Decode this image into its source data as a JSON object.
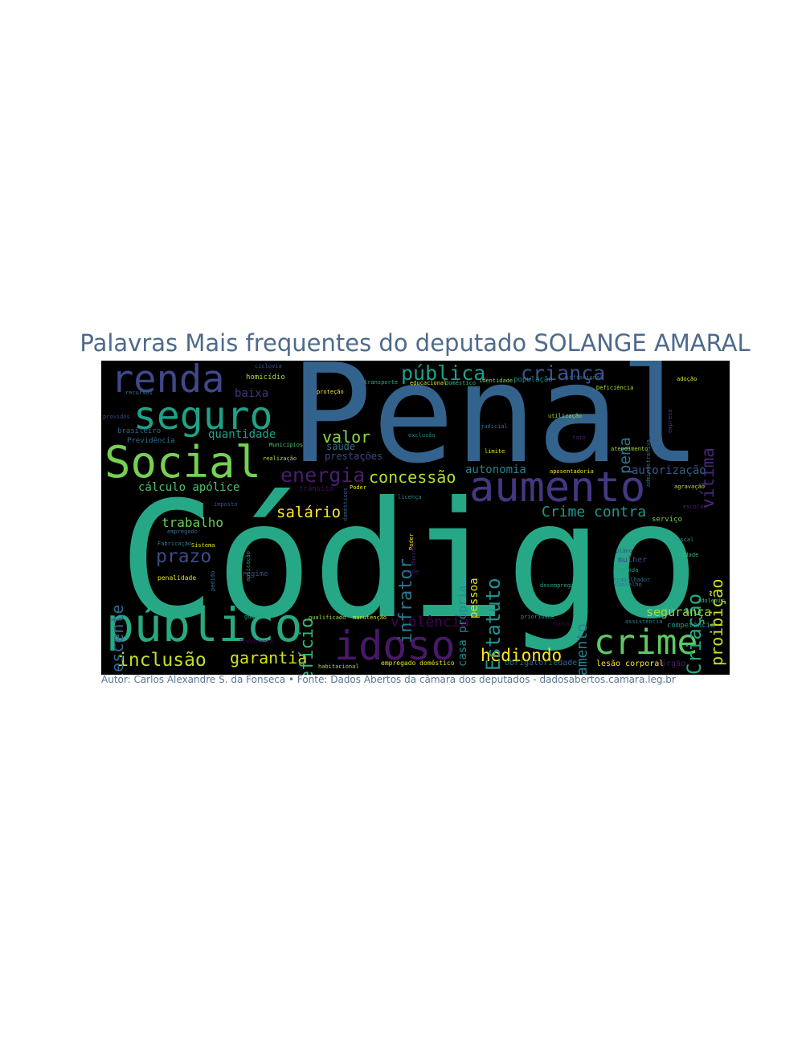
{
  "chart_data": {
    "type": "wordcloud",
    "title": "Palavras Mais frequentes do deputado SOLANGE AMARAL",
    "caption": "Autor: Carlos Alexandre S. da Fonseca • Fonte: Dados Abertos da câmara dos deputados - dadosabertos.camara.leg.br",
    "background": "#000000",
    "words": [
      {
        "text": "Código",
        "color": "#26a887",
        "vertical": false
      },
      {
        "text": "Penal",
        "color": "#33638d",
        "vertical": false
      },
      {
        "text": "público",
        "color": "#27a982",
        "vertical": false
      },
      {
        "text": "aumento",
        "color": "#453781",
        "vertical": false
      },
      {
        "text": "Social",
        "color": "#75d054",
        "vertical": false
      },
      {
        "text": "seguro",
        "color": "#1fa188",
        "vertical": false
      },
      {
        "text": "renda",
        "color": "#3f4889",
        "vertical": false
      },
      {
        "text": "idoso",
        "color": "#48186a",
        "vertical": false
      },
      {
        "text": "crime",
        "color": "#5ec962",
        "vertical": false
      },
      {
        "text": "inclusão",
        "color": "#c2df23",
        "vertical": false
      },
      {
        "text": "garantia",
        "color": "#d2e21b",
        "vertical": false
      },
      {
        "text": "hediondo",
        "color": "#fde725",
        "vertical": false
      },
      {
        "text": "violência",
        "color": "#440154",
        "vertical": false
      },
      {
        "text": "Estatuto",
        "color": "#21918c",
        "vertical": true
      },
      {
        "text": "infrator",
        "color": "#2a788e",
        "vertical": true
      },
      {
        "text": "benefício",
        "color": "#35b779",
        "vertical": true
      },
      {
        "text": "adolescente",
        "color": "#31688e",
        "vertical": true
      },
      {
        "text": "financiamento",
        "color": "#25858e",
        "vertical": true
      },
      {
        "text": "Criação",
        "color": "#22a884",
        "vertical": true
      },
      {
        "text": "proibição",
        "color": "#c8e020",
        "vertical": true
      },
      {
        "text": "vítima",
        "color": "#482878",
        "vertical": true
      },
      {
        "text": "pena",
        "color": "#2c728e",
        "vertical": true
      },
      {
        "text": "pública",
        "color": "#1f9e89",
        "vertical": false
      },
      {
        "text": "criança",
        "color": "#3b528b",
        "vertical": false
      },
      {
        "text": "energia",
        "color": "#481f70",
        "vertical": false
      },
      {
        "text": "concessão",
        "color": "#b5de2b",
        "vertical": false
      },
      {
        "text": "valor",
        "color": "#8fd744",
        "vertical": false
      },
      {
        "text": "salário",
        "color": "#fde725",
        "vertical": false
      },
      {
        "text": "prazo",
        "color": "#3e4a89",
        "vertical": false
      },
      {
        "text": "trabalho",
        "color": "#6ccd5a",
        "vertical": false
      },
      {
        "text": "Crime contra",
        "color": "#1f988b",
        "vertical": false
      },
      {
        "text": "segurança",
        "color": "#a0da39",
        "vertical": false
      },
      {
        "text": "autonomia",
        "color": "#26828e",
        "vertical": false
      },
      {
        "text": "autorização",
        "color": "#365c8d",
        "vertical": false
      },
      {
        "text": "cálculo apólice",
        "color": "#4ac16d",
        "vertical": false
      },
      {
        "text": "quantidade",
        "color": "#20a386",
        "vertical": false
      },
      {
        "text": "baixa",
        "color": "#46327e",
        "vertical": false
      },
      {
        "text": "saúde",
        "color": "#2d708e",
        "vertical": false
      },
      {
        "text": "prestações",
        "color": "#3f4788",
        "vertical": false
      },
      {
        "text": "casa própria",
        "color": "#23898e",
        "vertical": true
      },
      {
        "text": "pessoa",
        "color": "#dde318",
        "vertical": true
      },
      {
        "text": "homicídio",
        "color": "#a5db36",
        "vertical": false
      },
      {
        "text": "Previdência",
        "color": "#2e6f8e",
        "vertical": false
      },
      {
        "text": "brasileiro",
        "color": "#31688e",
        "vertical": false
      },
      {
        "text": "regime",
        "color": "#3e4c8a",
        "vertical": false
      },
      {
        "text": "penalidade",
        "color": "#d8e219",
        "vertical": false
      },
      {
        "text": "empregado doméstico",
        "color": "#e5e419",
        "vertical": false
      },
      {
        "text": "obrigatoriedade",
        "color": "#30698e",
        "vertical": false
      },
      {
        "text": "lesão corporal",
        "color": "#fde725",
        "vertical": false
      },
      {
        "text": "órgão",
        "color": "#481c6e",
        "vertical": false
      },
      {
        "text": "habitacional",
        "color": "#addc30",
        "vertical": false
      },
      {
        "text": "competência",
        "color": "#1e9b8a",
        "vertical": false
      },
      {
        "text": "assistência",
        "color": "#25848e",
        "vertical": false
      },
      {
        "text": "adolemir",
        "color": "#38b977",
        "vertical": false
      },
      {
        "text": "Conselho",
        "color": "#2a788e",
        "vertical": false
      },
      {
        "text": "mulher",
        "color": "#414487",
        "vertical": false
      },
      {
        "text": "serviço",
        "color": "#75d054",
        "vertical": false
      },
      {
        "text": "aposentadoria",
        "color": "#f1e51d",
        "vertical": false
      },
      {
        "text": "atendimento",
        "color": "#a2da37",
        "vertical": false
      },
      {
        "text": "utilização",
        "color": "#9bd93c",
        "vertical": false
      },
      {
        "text": "judicial",
        "color": "#2c718e",
        "vertical": false
      },
      {
        "text": "exclusão",
        "color": "#24878e",
        "vertical": false
      },
      {
        "text": "Municípios",
        "color": "#50c46a",
        "vertical": false
      },
      {
        "text": "realização",
        "color": "#a8db34",
        "vertical": false
      },
      {
        "text": "trânsito",
        "color": "#470e61",
        "vertical": false
      },
      {
        "text": "imposto",
        "color": "#3b528b",
        "vertical": false
      },
      {
        "text": "empregado",
        "color": "#2d708e",
        "vertical": false
      },
      {
        "text": "Fabricação",
        "color": "#25848e",
        "vertical": false
      },
      {
        "text": "Sistema",
        "color": "#e2e418",
        "vertical": false
      },
      {
        "text": "guarda",
        "color": "#1fa088",
        "vertical": false
      },
      {
        "text": "qualificado",
        "color": "#9dd93b",
        "vertical": false
      },
      {
        "text": "manutenção",
        "color": "#d5e21a",
        "vertical": false
      },
      {
        "text": "educacional",
        "color": "#e7e419",
        "vertical": false
      },
      {
        "text": "doméstico",
        "color": "#35b779",
        "vertical": false
      },
      {
        "text": "identidade",
        "color": "#90d743",
        "vertical": false
      },
      {
        "text": "população",
        "color": "#228d8d",
        "vertical": false
      },
      {
        "text": "transporte",
        "color": "#29af7f",
        "vertical": false
      },
      {
        "text": "proteção",
        "color": "#fde725",
        "vertical": false
      },
      {
        "text": "infracional",
        "color": "#2f6b8e",
        "vertical": false
      },
      {
        "text": "Deficiência",
        "color": "#addc30",
        "vertical": false
      },
      {
        "text": "adoção",
        "color": "#dae319",
        "vertical": false
      },
      {
        "text": "agravação",
        "color": "#bddf26",
        "vertical": false
      },
      {
        "text": "escolas",
        "color": "#482475",
        "vertical": false
      },
      {
        "text": "limite",
        "color": "#e4e419",
        "vertical": false
      },
      {
        "text": "providos",
        "color": "#3e4989",
        "vertical": false
      },
      {
        "text": "ciclovia",
        "color": "#3b528b",
        "vertical": false
      },
      {
        "text": "desemprego",
        "color": "#22a785",
        "vertical": false
      },
      {
        "text": "prioridade",
        "color": "#1f948c",
        "vertical": false
      },
      {
        "text": "fato",
        "color": "#482071",
        "vertical": false
      },
      {
        "text": "Poder",
        "color": "#f1e51d",
        "vertical": false
      },
      {
        "text": "recursos",
        "color": "#2b758e",
        "vertical": false
      },
      {
        "text": "Presidente",
        "color": "#440154",
        "vertical": false
      },
      {
        "text": "licença",
        "color": "#23898e",
        "vertical": false
      },
      {
        "text": "plano",
        "color": "#3f4788",
        "vertical": false
      },
      {
        "text": "emenda",
        "color": "#1fa287",
        "vertical": false
      },
      {
        "text": "idade",
        "color": "#48186a",
        "vertical": false
      },
      {
        "text": "administrativa",
        "color": "#2c738e",
        "vertical": true
      },
      {
        "text": "empresa",
        "color": "#433e85",
        "vertical": true
      },
      {
        "text": "aplicação",
        "color": "#1f958b",
        "vertical": true
      },
      {
        "text": "pedido",
        "color": "#2a788e",
        "vertical": true
      },
      {
        "text": "Poder",
        "color": "#f1e51d",
        "vertical": true
      },
      {
        "text": "domésticos",
        "color": "#34618d",
        "vertical": true
      },
      {
        "text": "dúvidas",
        "color": "#482878",
        "vertical": true
      },
      {
        "text": "cidade",
        "color": "#35b779",
        "vertical": false
      },
      {
        "text": "trabalhador",
        "color": "#2c718e",
        "vertical": false
      },
      {
        "text": "fonte",
        "color": "#440154",
        "vertical": false
      },
      {
        "text": "fiscal",
        "color": "#21918c",
        "vertical": false
      }
    ]
  }
}
